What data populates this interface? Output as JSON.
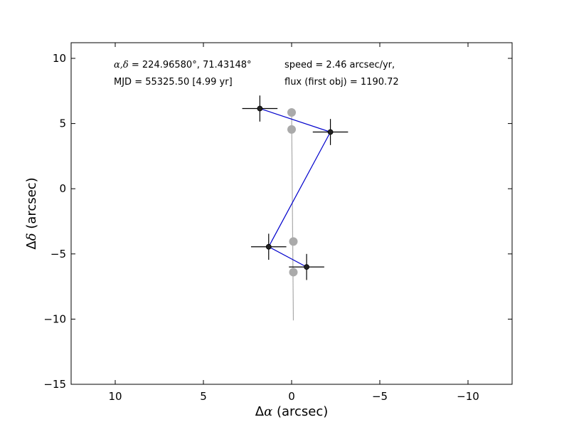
{
  "chart_data": {
    "type": "scatter",
    "x_axis": {
      "label_prefix": "Δ",
      "label_symbol": "α",
      "label_suffix": " (arcsec)",
      "range": [
        12.5,
        -12.5
      ],
      "reversed": true,
      "ticks": [
        10,
        5,
        0,
        -5,
        -10
      ],
      "tick_labels": [
        "10",
        "5",
        "0",
        "−5",
        "−10"
      ]
    },
    "y_axis": {
      "label_prefix": "Δ",
      "label_symbol": "δ",
      "label_suffix": " (arcsec)",
      "range": [
        -15,
        11.2
      ],
      "ticks": [
        10,
        5,
        0,
        -5,
        -10,
        -15
      ],
      "tick_labels": [
        "10",
        "5",
        "0",
        "−5",
        "−10",
        "−15"
      ]
    },
    "grid": false,
    "annotations": {
      "coords_symbol": "α,δ",
      "coords_text": " = 224.96580°, 71.43148°",
      "mjd_text": "MJD = 55325.50 [4.99 yr]",
      "speed_text": "speed = 2.46 arcsec/yr,",
      "flux_text": "flux (first obj) = 1190.72"
    },
    "series": [
      {
        "kind": "observed-positions",
        "color": "#0000cc",
        "marker_color": "#222222",
        "points": [
          {
            "x": 1.8,
            "y": 6.15,
            "xerr": 1.0,
            "yerr": 1.0
          },
          {
            "x": -2.2,
            "y": 4.35,
            "xerr": 1.0,
            "yerr": 1.0
          },
          {
            "x": 1.3,
            "y": -4.45,
            "xerr": 1.0,
            "yerr": 1.0
          },
          {
            "x": -0.85,
            "y": -6.0,
            "xerr": 1.0,
            "yerr": 1.0
          }
        ]
      },
      {
        "kind": "model-positions",
        "color": "#aaaaaa",
        "points": [
          {
            "x": 0.0,
            "y": 5.85
          },
          {
            "x": 0.0,
            "y": 4.55
          },
          {
            "x": -0.1,
            "y": -4.05
          },
          {
            "x": -0.1,
            "y": -6.4
          }
        ]
      },
      {
        "kind": "model-track",
        "color": "#aaaaaa",
        "line": [
          {
            "x": 0.0,
            "y": 5.85
          },
          {
            "x": -0.1,
            "y": -10.1
          }
        ]
      }
    ]
  }
}
